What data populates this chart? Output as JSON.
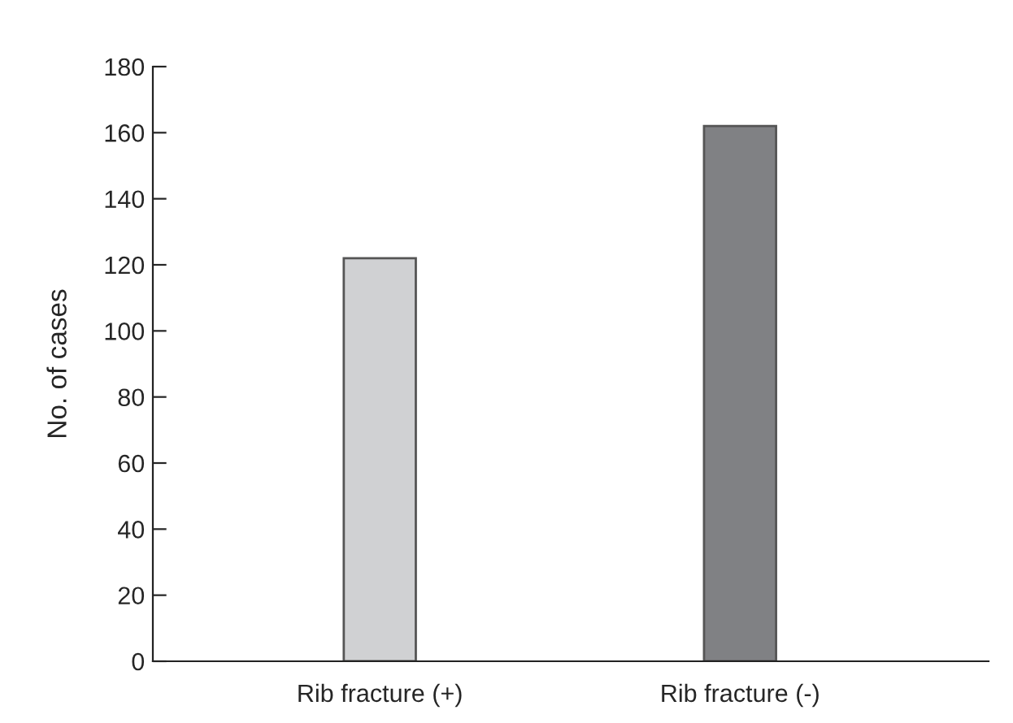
{
  "chart_data": {
    "type": "bar",
    "ylabel": "No. of cases",
    "categories": [
      "Rib fracture (+)",
      "Rib fracture (-)"
    ],
    "values": [
      122,
      162
    ],
    "colors": [
      "#d0d1d3",
      "#808184"
    ],
    "ylim": [
      0,
      180
    ],
    "yticks": [
      0,
      20,
      40,
      60,
      80,
      100,
      120,
      140,
      160,
      180
    ],
    "grid": false,
    "legend": false
  }
}
